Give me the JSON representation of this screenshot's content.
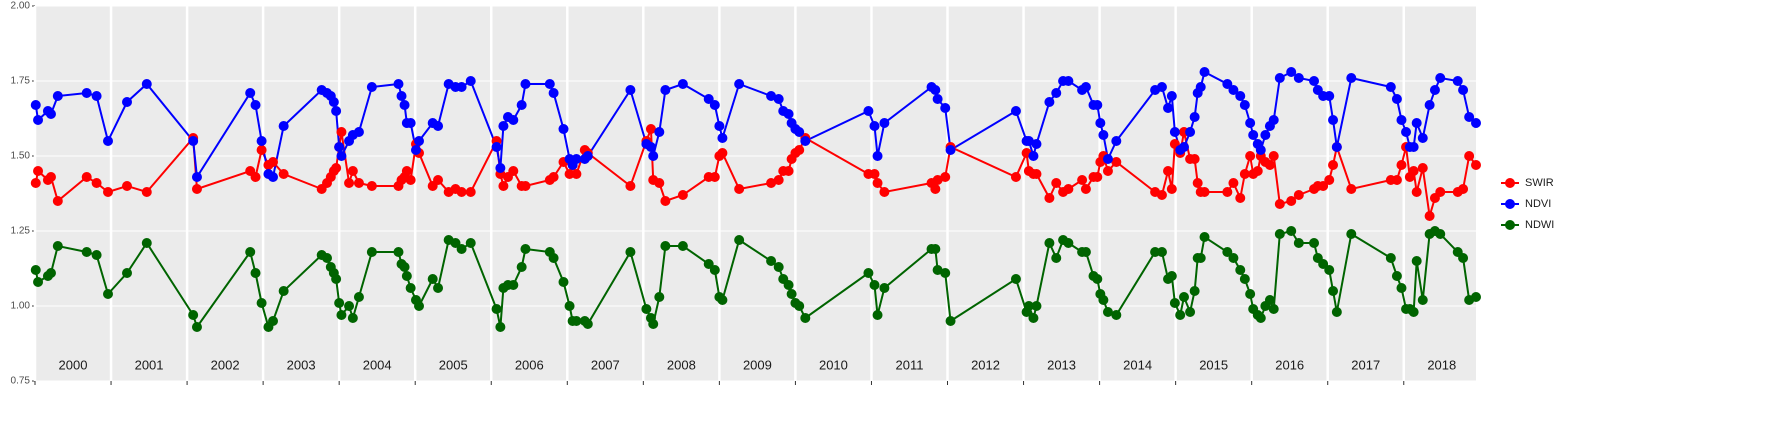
{
  "chart_data": {
    "type": "line",
    "legend": "right",
    "grid": true,
    "xlim": [
      2000,
      2018.95
    ],
    "xticks": [
      2000,
      2001,
      2002,
      2003,
      2004,
      2005,
      2006,
      2007,
      2008,
      2009,
      2010,
      2011,
      2012,
      2013,
      2014,
      2015,
      2016,
      2017,
      2018
    ],
    "ylim": [
      0.75,
      2
    ],
    "yticks": [
      0.75,
      {
        "value": 1,
        "label": "1.00"
      },
      1.25,
      {
        "value": 1.5,
        "label": "1.50"
      },
      1.75,
      {
        "value": 2,
        "label": "2.00"
      }
    ],
    "x": [
      2000.01,
      2000.04,
      2000.17,
      2000.21,
      2000.3,
      2000.68,
      2000.81,
      2000.96,
      2001.21,
      2001.47,
      2002.08,
      2002.13,
      2002.83,
      2002.9,
      2002.98,
      2003.07,
      2003.13,
      2003.27,
      2003.77,
      2003.84,
      2003.89,
      2003.93,
      2003.96,
      2004.0,
      2004.03,
      2004.13,
      2004.18,
      2004.26,
      2004.43,
      2004.78,
      2004.82,
      2004.86,
      2004.89,
      2004.94,
      2005.01,
      2005.05,
      2005.23,
      2005.3,
      2005.44,
      2005.53,
      2005.61,
      2005.73,
      2006.07,
      2006.12,
      2006.16,
      2006.22,
      2006.29,
      2006.4,
      2006.45,
      2006.77,
      2006.82,
      2006.95,
      2007.03,
      2007.07,
      2007.12,
      2007.23,
      2007.27,
      2007.83,
      2008.04,
      2008.1,
      2008.13,
      2008.21,
      2008.29,
      2008.52,
      2008.86,
      2008.94,
      2009.0,
      2009.04,
      2009.26,
      2009.68,
      2009.78,
      2009.84,
      2009.91,
      2009.95,
      2010.0,
      2010.05,
      2010.13,
      2010.96,
      2011.04,
      2011.08,
      2011.17,
      2011.79,
      2011.84,
      2011.87,
      2011.97,
      2012.04,
      2012.9,
      2013.04,
      2013.07,
      2013.13,
      2013.17,
      2013.34,
      2013.43,
      2013.52,
      2013.59,
      2013.77,
      2013.82,
      2013.92,
      2013.97,
      2014.01,
      2014.05,
      2014.11,
      2014.22,
      2014.73,
      2014.82,
      2014.9,
      2014.95,
      2014.99,
      2015.06,
      2015.11,
      2015.19,
      2015.25,
      2015.29,
      2015.33,
      2015.38,
      2015.68,
      2015.76,
      2015.85,
      2015.91,
      2015.98,
      2016.02,
      2016.08,
      2016.12,
      2016.18,
      2016.24,
      2016.29,
      2016.37,
      2016.52,
      2016.62,
      2016.82,
      2016.87,
      2016.94,
      2017.02,
      2017.07,
      2017.12,
      2017.31,
      2017.83,
      2017.91,
      2017.97,
      2018.03,
      2018.08,
      2018.13,
      2018.17,
      2018.25,
      2018.34,
      2018.41,
      2018.48,
      2018.71,
      2018.78,
      2018.86,
      2018.95
    ],
    "series": [
      {
        "name": "SWIR",
        "color": "#ff0000",
        "values": [
          1.41,
          1.45,
          1.42,
          1.43,
          1.35,
          1.43,
          1.41,
          1.38,
          1.4,
          1.38,
          1.56,
          1.39,
          1.45,
          1.43,
          1.52,
          1.47,
          1.48,
          1.44,
          1.39,
          1.41,
          1.43,
          1.45,
          1.46,
          1.53,
          1.58,
          1.41,
          1.45,
          1.41,
          1.4,
          1.4,
          1.42,
          1.43,
          1.45,
          1.42,
          1.54,
          1.51,
          1.4,
          1.42,
          1.38,
          1.39,
          1.38,
          1.38,
          1.55,
          1.44,
          1.4,
          1.43,
          1.45,
          1.4,
          1.4,
          1.42,
          1.43,
          1.48,
          1.44,
          1.47,
          1.44,
          1.52,
          1.51,
          1.4,
          1.55,
          1.59,
          1.42,
          1.41,
          1.35,
          1.37,
          1.43,
          1.43,
          1.5,
          1.51,
          1.39,
          1.41,
          1.42,
          1.45,
          1.45,
          1.49,
          1.51,
          1.52,
          1.56,
          1.44,
          1.44,
          1.41,
          1.38,
          1.41,
          1.39,
          1.42,
          1.43,
          1.53,
          1.43,
          1.51,
          1.45,
          1.44,
          1.44,
          1.36,
          1.41,
          1.38,
          1.39,
          1.42,
          1.39,
          1.43,
          1.43,
          1.48,
          1.5,
          1.45,
          1.48,
          1.38,
          1.37,
          1.45,
          1.39,
          1.54,
          1.51,
          1.58,
          1.49,
          1.49,
          1.41,
          1.38,
          1.38,
          1.38,
          1.41,
          1.36,
          1.44,
          1.5,
          1.44,
          1.45,
          1.5,
          1.48,
          1.47,
          1.5,
          1.34,
          1.35,
          1.37,
          1.39,
          1.4,
          1.4,
          1.42,
          1.47,
          1.53,
          1.39,
          1.42,
          1.42,
          1.47,
          1.53,
          1.43,
          1.45,
          1.38,
          1.46,
          1.3,
          1.36,
          1.38,
          1.38,
          1.39,
          1.5,
          1.47
        ]
      },
      {
        "name": "NDVI",
        "color": "#0000ff",
        "values": [
          1.67,
          1.62,
          1.65,
          1.64,
          1.7,
          1.71,
          1.7,
          1.55,
          1.68,
          1.74,
          1.55,
          1.43,
          1.71,
          1.67,
          1.55,
          1.44,
          1.43,
          1.6,
          1.72,
          1.71,
          1.7,
          1.68,
          1.65,
          1.53,
          1.5,
          1.55,
          1.57,
          1.58,
          1.73,
          1.74,
          1.7,
          1.67,
          1.61,
          1.61,
          1.52,
          1.55,
          1.61,
          1.6,
          1.74,
          1.73,
          1.73,
          1.75,
          1.53,
          1.46,
          1.6,
          1.63,
          1.62,
          1.67,
          1.74,
          1.74,
          1.71,
          1.59,
          1.49,
          1.47,
          1.49,
          1.49,
          1.5,
          1.72,
          1.54,
          1.53,
          1.5,
          1.58,
          1.72,
          1.74,
          1.69,
          1.67,
          1.6,
          1.56,
          1.74,
          1.7,
          1.69,
          1.65,
          1.64,
          1.61,
          1.59,
          1.58,
          1.55,
          1.65,
          1.6,
          1.5,
          1.61,
          1.73,
          1.72,
          1.69,
          1.66,
          1.52,
          1.65,
          1.55,
          1.55,
          1.5,
          1.54,
          1.68,
          1.71,
          1.75,
          1.75,
          1.72,
          1.73,
          1.67,
          1.67,
          1.61,
          1.57,
          1.49,
          1.55,
          1.72,
          1.73,
          1.66,
          1.7,
          1.58,
          1.52,
          1.53,
          1.58,
          1.63,
          1.71,
          1.73,
          1.78,
          1.74,
          1.72,
          1.7,
          1.67,
          1.61,
          1.57,
          1.54,
          1.52,
          1.57,
          1.6,
          1.62,
          1.76,
          1.78,
          1.76,
          1.75,
          1.72,
          1.7,
          1.7,
          1.62,
          1.53,
          1.76,
          1.73,
          1.69,
          1.62,
          1.58,
          1.53,
          1.53,
          1.61,
          1.56,
          1.67,
          1.72,
          1.76,
          1.75,
          1.72,
          1.63,
          1.61
        ]
      },
      {
        "name": "NDWI",
        "color": "#006400",
        "values": [
          1.12,
          1.08,
          1.1,
          1.11,
          1.2,
          1.18,
          1.17,
          1.04,
          1.11,
          1.21,
          0.97,
          0.93,
          1.18,
          1.11,
          1.01,
          0.93,
          0.95,
          1.05,
          1.17,
          1.16,
          1.13,
          1.11,
          1.09,
          1.01,
          0.97,
          1.0,
          0.96,
          1.03,
          1.18,
          1.18,
          1.14,
          1.13,
          1.1,
          1.06,
          1.02,
          1.0,
          1.09,
          1.06,
          1.22,
          1.21,
          1.19,
          1.21,
          0.99,
          0.93,
          1.06,
          1.07,
          1.07,
          1.13,
          1.19,
          1.18,
          1.16,
          1.08,
          1.0,
          0.95,
          0.95,
          0.95,
          0.94,
          1.18,
          0.99,
          0.96,
          0.94,
          1.03,
          1.2,
          1.2,
          1.14,
          1.12,
          1.03,
          1.02,
          1.22,
          1.15,
          1.13,
          1.09,
          1.07,
          1.04,
          1.01,
          1.0,
          0.96,
          1.11,
          1.07,
          0.97,
          1.06,
          1.19,
          1.19,
          1.12,
          1.11,
          0.95,
          1.09,
          0.98,
          1.0,
          0.96,
          1.0,
          1.21,
          1.16,
          1.22,
          1.21,
          1.18,
          1.18,
          1.1,
          1.09,
          1.04,
          1.02,
          0.98,
          0.97,
          1.18,
          1.18,
          1.09,
          1.1,
          1.01,
          0.97,
          1.03,
          0.98,
          1.05,
          1.16,
          1.16,
          1.23,
          1.18,
          1.16,
          1.12,
          1.09,
          1.04,
          0.99,
          0.97,
          0.96,
          1.0,
          1.02,
          0.99,
          1.24,
          1.25,
          1.21,
          1.21,
          1.16,
          1.14,
          1.12,
          1.05,
          0.98,
          1.24,
          1.16,
          1.1,
          1.06,
          0.99,
          0.99,
          0.98,
          1.15,
          1.02,
          1.24,
          1.25,
          1.24,
          1.18,
          1.16,
          1.02,
          1.03
        ]
      }
    ]
  }
}
